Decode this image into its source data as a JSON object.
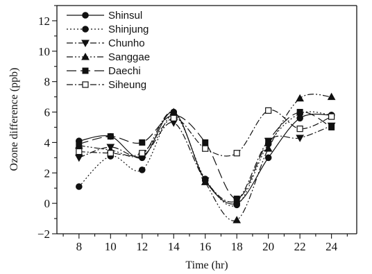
{
  "chart_data": {
    "type": "line",
    "title": "",
    "xlabel": "Time (hr)",
    "ylabel": "Ozone difference (ppb)",
    "xlim": [
      6.6,
      25.6
    ],
    "ylim": [
      -2,
      13
    ],
    "xticks": [
      8,
      10,
      12,
      14,
      16,
      18,
      20,
      22,
      24
    ],
    "yticks": [
      -2,
      0,
      2,
      4,
      6,
      8,
      10,
      12
    ],
    "grid": false,
    "legend_position": "top-left",
    "x": [
      8,
      10,
      12,
      14,
      16,
      18,
      20,
      22,
      24
    ],
    "series": [
      {
        "name": "Shinsul",
        "marker": "circle-filled",
        "dash": "solid",
        "values": [
          4.1,
          4.4,
          3.0,
          6.0,
          1.5,
          0.0,
          3.0,
          5.6,
          5.8
        ]
      },
      {
        "name": "Shinjung",
        "marker": "circle-filled",
        "dash": "dotted",
        "values": [
          1.1,
          3.1,
          2.2,
          5.8,
          1.6,
          -0.1,
          3.9,
          5.9,
          5.8
        ]
      },
      {
        "name": "Chunho",
        "marker": "triangle-down",
        "dash": "dash-dot",
        "values": [
          3.0,
          3.7,
          3.1,
          5.3,
          1.5,
          0.2,
          4.1,
          4.3,
          5.1
        ]
      },
      {
        "name": "Sanggae",
        "marker": "triangle-up",
        "dash": "dash-dot-dot",
        "values": [
          3.8,
          3.5,
          3.2,
          6.0,
          1.4,
          -1.1,
          3.6,
          6.9,
          7.0
        ]
      },
      {
        "name": "Daechi",
        "marker": "square-filled",
        "dash": "long-dash",
        "values": [
          3.9,
          4.4,
          4.0,
          5.8,
          4.0,
          0.3,
          4.1,
          6.0,
          5.0
        ]
      },
      {
        "name": "Siheung",
        "marker": "square-open",
        "dash": "dash-dot",
        "values": [
          3.4,
          3.3,
          3.3,
          5.6,
          3.6,
          3.3,
          6.1,
          4.9,
          5.7
        ]
      }
    ]
  }
}
